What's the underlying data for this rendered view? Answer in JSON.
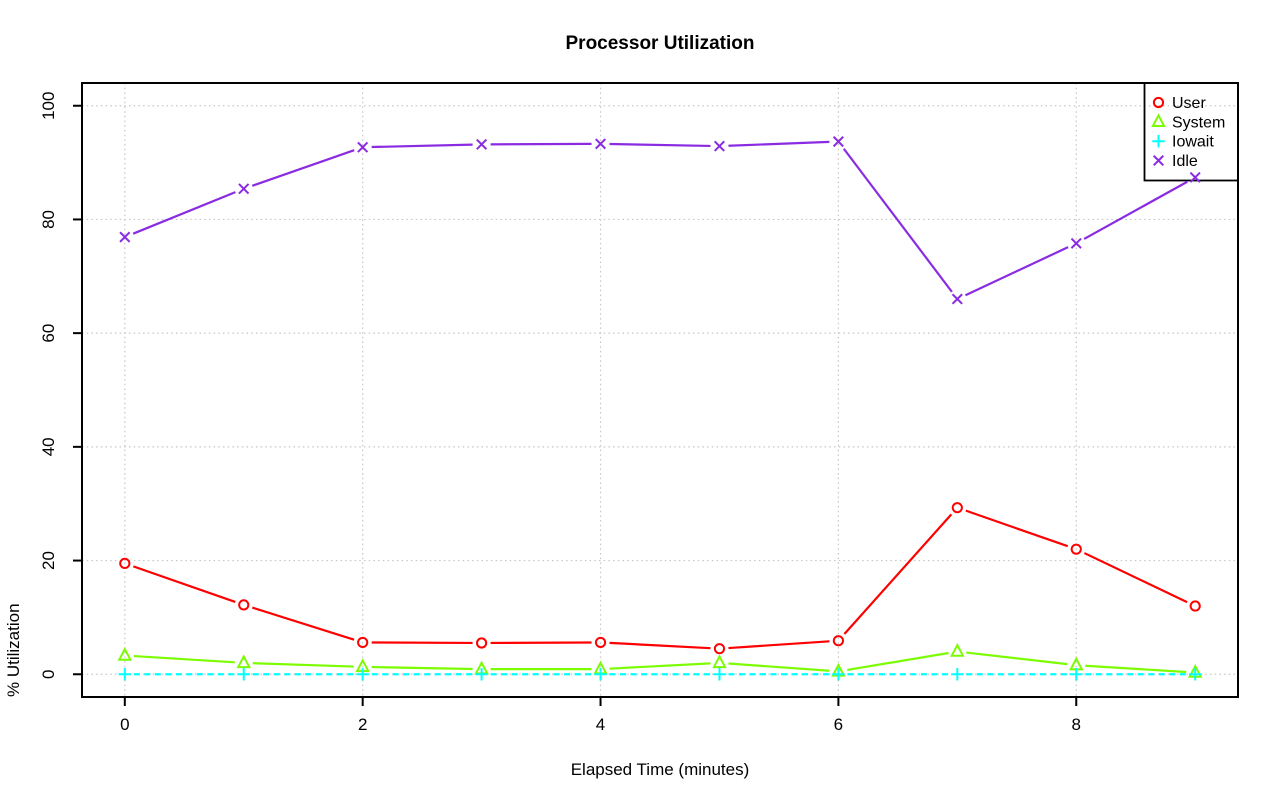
{
  "page": {
    "background": "#ffffff"
  },
  "chart_data": {
    "type": "line",
    "title": "Processor Utilization",
    "xlabel": "Elapsed Time (minutes)",
    "ylabel": "% Utilization",
    "x": [
      0,
      1,
      2,
      3,
      4,
      5,
      6,
      7,
      8,
      9
    ],
    "xticks": [
      0,
      2,
      4,
      6,
      8
    ],
    "yticks": [
      0,
      20,
      40,
      60,
      80,
      100
    ],
    "xlim": [
      0,
      9
    ],
    "ylim": [
      0,
      100
    ],
    "grid": true,
    "grid_style": "dotted",
    "grid_color": "#c6c6c6",
    "axis_color": "#000000",
    "legend_position": "topright",
    "series": [
      {
        "name": "User",
        "color": "#ff0000",
        "marker": "circle",
        "linestyle": "solid",
        "values": [
          19.5,
          12.2,
          5.6,
          5.5,
          5.6,
          4.5,
          5.9,
          29.3,
          22.0,
          12.0
        ]
      },
      {
        "name": "System",
        "color": "#7cfc00",
        "marker": "triangle",
        "linestyle": "solid",
        "values": [
          3.3,
          2.0,
          1.3,
          0.9,
          0.9,
          2.0,
          0.5,
          4.0,
          1.6,
          0.3
        ]
      },
      {
        "name": "Iowait",
        "color": "#00ffff",
        "marker": "plus",
        "linestyle": "dashed",
        "values": [
          0,
          0,
          0,
          0,
          0,
          0,
          0,
          0,
          0,
          0
        ]
      },
      {
        "name": "Idle",
        "color": "#8a2be2",
        "marker": "x-cross",
        "linestyle": "solid",
        "values": [
          76.9,
          85.4,
          92.7,
          93.2,
          93.3,
          92.9,
          93.7,
          66.0,
          75.8,
          87.4
        ]
      }
    ]
  }
}
